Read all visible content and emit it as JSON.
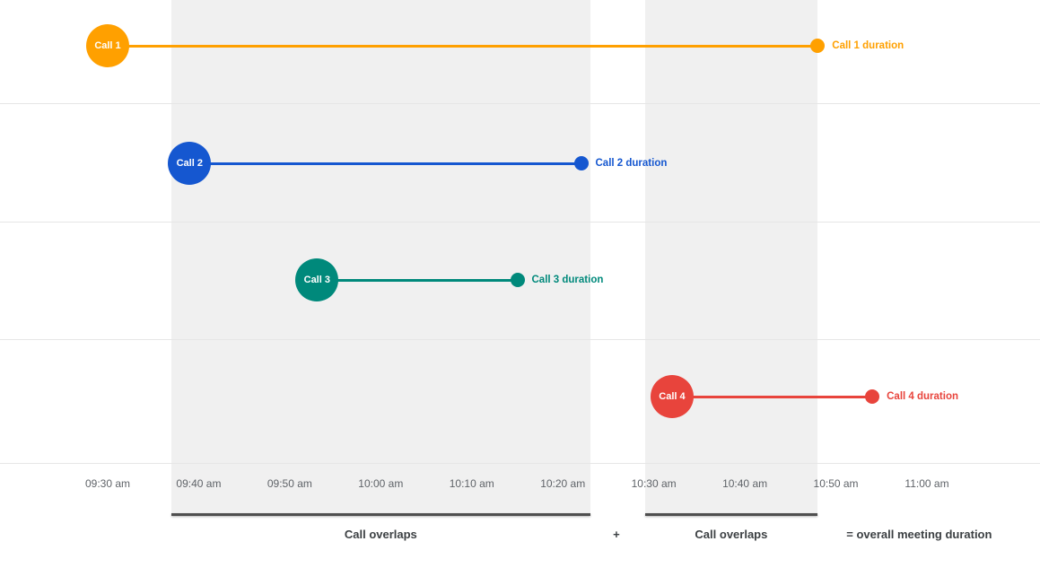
{
  "chart_data": {
    "type": "timeline",
    "x_axis": {
      "range": [
        "09:30 am",
        "11:00 am"
      ],
      "tick_labels": [
        "09:30 am",
        "09:40 am",
        "09:50 am",
        "10:00 am",
        "10:10 am",
        "10:20 am",
        "10:30 am",
        "10:40 am",
        "10:50 am",
        "11:00 am"
      ]
    },
    "series": [
      {
        "name": "Call 1",
        "duration_label": "Call 1 duration",
        "color": "#FFA000",
        "start": "09:30 am",
        "end": "10:48 am",
        "row": 1
      },
      {
        "name": "Call 2",
        "duration_label": "Call 2 duration",
        "color": "#1557D0",
        "start": "09:39 am",
        "end": "10:22 am",
        "row": 2
      },
      {
        "name": "Call 3",
        "duration_label": "Call 3 duration",
        "color": "#00897B",
        "start": "09:53 am",
        "end": "10:15 am",
        "row": 3
      },
      {
        "name": "Call 4",
        "duration_label": "Call 4 duration",
        "color": "#E8443C",
        "start": "10:32 am",
        "end": "10:54 am",
        "row": 4
      }
    ],
    "overlap_bands": [
      {
        "label": "Call overlaps",
        "start": "09:37 am",
        "end": "10:23 am"
      },
      {
        "label": "Call overlaps",
        "start": "10:29 am",
        "end": "10:48 am"
      }
    ],
    "footer": {
      "plus": "+",
      "equals_label": "= overall meeting duration"
    },
    "band_color": "#F0F0F0",
    "grid": true,
    "legend": "none"
  }
}
